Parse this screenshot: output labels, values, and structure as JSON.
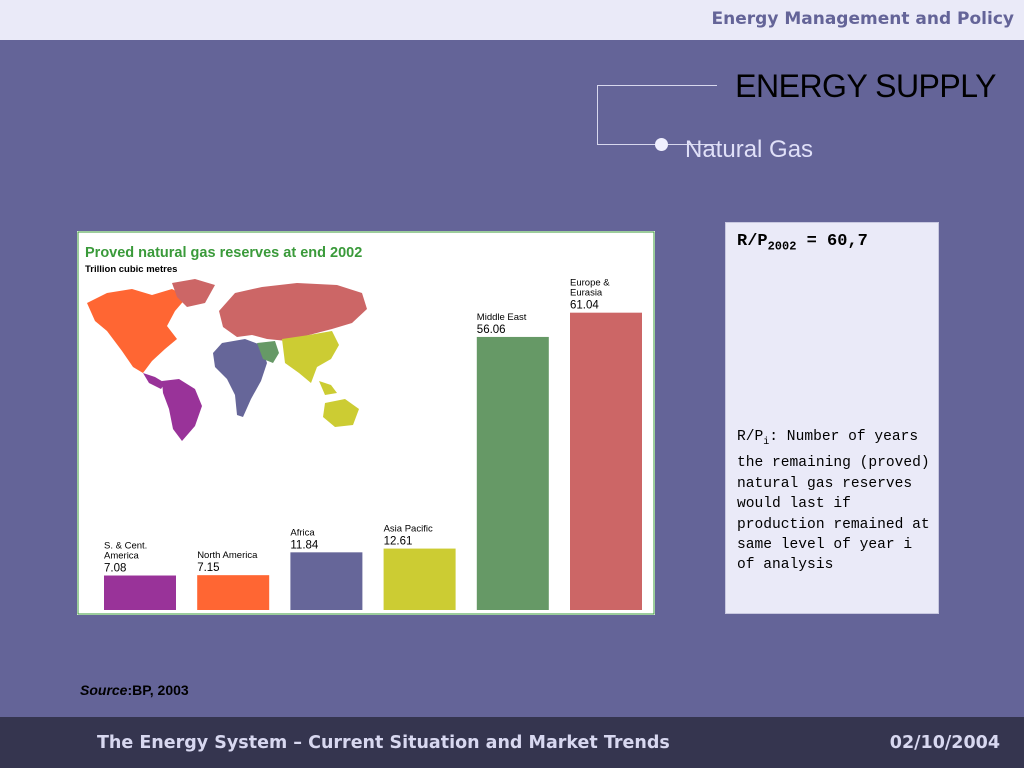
{
  "header": {
    "course": "Energy Management and Policy"
  },
  "slide": {
    "title": "ENERGY SUPPLY",
    "subtitle": "Natural Gas"
  },
  "info": {
    "rp_label": "R/P",
    "rp_year": "2002",
    "rp_value": "= 60,7",
    "desc_prefix": "R/P",
    "desc_sub": "i",
    "desc_text": ": Number of years the remaining (proved) natural gas reserves would last if production remained at same level of year i of analysis"
  },
  "source": {
    "label": "Source",
    "text": ":BP, 2003"
  },
  "footer": {
    "left": "The Energy System – Current Situation and Market Trends",
    "right": "02/10/2004"
  },
  "colors": {
    "chart_title": "#3a9a3a",
    "bars": [
      "#993399",
      "#ff6633",
      "#666699",
      "#cccc33",
      "#669966",
      "#cc6666"
    ]
  },
  "chart_data": {
    "type": "bar",
    "title": "Proved natural gas reserves at end 2002",
    "subtitle": "Trillion cubic metres",
    "ylim": [
      0,
      62
    ],
    "categories": [
      [
        "S. & Cent.",
        "America"
      ],
      [
        "North America"
      ],
      [
        "Africa"
      ],
      [
        "Asia Pacific"
      ],
      [
        "Middle East"
      ],
      [
        "Europe &",
        "Eurasia"
      ]
    ],
    "values": [
      7.08,
      7.15,
      11.84,
      12.61,
      56.06,
      61.04
    ],
    "value_labels": [
      "7.08",
      "7.15",
      "11.84",
      "12.61",
      "56.06",
      "61.04"
    ],
    "grid": false,
    "legend": "none",
    "inset": "world map colored by region"
  }
}
